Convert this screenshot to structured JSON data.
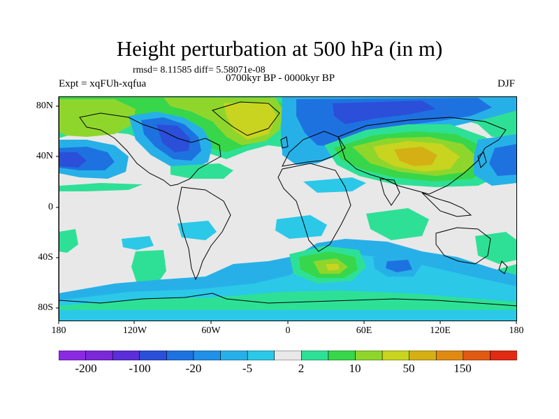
{
  "title": "Height perturbation at 500 hPa (in m)",
  "stats_line": "rmsd= 8.11585 diff= 5.58071e-08",
  "period": "0700kyr BP - 0000kyr BP",
  "experiment": "Expt = xqFUh-xqfua",
  "season": "DJF",
  "lon_labels": [
    "180",
    "120W",
    "60W",
    "0",
    "60E",
    "120E",
    "180"
  ],
  "lat_labels": [
    "80N",
    "40N",
    "0",
    "40S",
    "80S"
  ],
  "colorbar": {
    "labels": [
      "-200",
      "-100",
      "-20",
      "-5",
      "2",
      "10",
      "50",
      "150"
    ],
    "colors": [
      "#8a2be2",
      "#7a28d8",
      "#5a2ed8",
      "#2b4fd8",
      "#1e72e0",
      "#2190e8",
      "#27b0e8",
      "#2bc8e8",
      "#e8e8e8",
      "#2ee096",
      "#38d64a",
      "#8fd62c",
      "#c8d420",
      "#d4b014",
      "#e08a14",
      "#e05a14",
      "#e02a14"
    ]
  },
  "colors": {
    "neutral": "#e8e8e8",
    "light_blue": "#27b0e8",
    "cyan": "#2bc8e8",
    "mid_blue": "#1e72e0",
    "deep_blue": "#2b4fd8",
    "green": "#2ee096",
    "light_green": "#38d64a",
    "yellow_green": "#8fd62c",
    "yellow": "#c8d420",
    "ochre": "#d4b014"
  }
}
